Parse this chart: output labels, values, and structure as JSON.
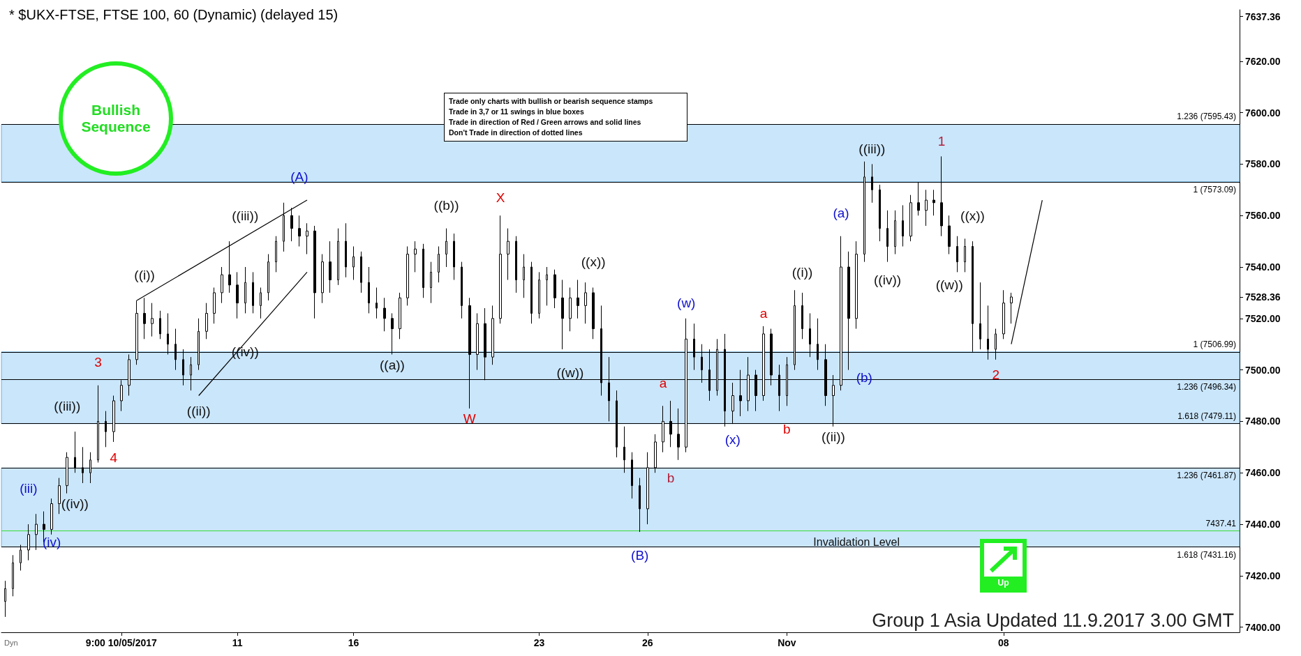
{
  "chart_data": {
    "type": "candlestick",
    "title": "* $UKX-FTSE, FTSE 100, 60 (Dynamic) (delayed 15)",
    "color": "#000000",
    "categories": [
      null,
      null,
      null,
      null,
      null,
      null,
      null,
      null,
      null,
      null,
      null,
      null,
      null,
      null,
      null,
      "9:00 10/05/2017",
      null,
      null,
      null,
      null,
      null,
      null,
      null,
      null,
      null,
      null,
      null,
      null,
      null,
      null,
      "11",
      null,
      null,
      null,
      null,
      null,
      null,
      null,
      null,
      null,
      null,
      null,
      null,
      null,
      null,
      "16",
      null,
      null,
      null,
      null,
      null,
      null,
      null,
      null,
      null,
      null,
      null,
      null,
      null,
      null,
      null,
      null,
      null,
      null,
      null,
      null,
      null,
      null,
      null,
      "23",
      null,
      null,
      null,
      null,
      null,
      null,
      null,
      null,
      null,
      null,
      null,
      null,
      null,
      "26",
      null,
      null,
      null,
      null,
      null,
      null,
      null,
      null,
      null,
      null,
      null,
      null,
      null,
      null,
      null,
      null,
      null,
      "Nov",
      null,
      null,
      null,
      null,
      null,
      null,
      null,
      null,
      null,
      null,
      null,
      null,
      null,
      null,
      null,
      null,
      null,
      null,
      null,
      null,
      null,
      null,
      null,
      null,
      null,
      null,
      null,
      "08",
      null,
      null,
      null,
      null,
      null,
      null,
      null,
      null,
      null,
      null,
      null,
      null,
      null,
      null,
      null,
      null,
      null,
      null,
      null,
      null,
      null,
      null,
      null,
      null,
      null,
      null,
      null,
      null,
      null,
      null
    ],
    "ohlc": [
      [
        7410,
        7418,
        7404,
        7415
      ],
      [
        7415,
        7428,
        7412,
        7425
      ],
      [
        7425,
        7432,
        7422,
        7430
      ],
      [
        7430,
        7440,
        7426,
        7436
      ],
      [
        7436,
        7444,
        7430,
        7440
      ],
      [
        7440,
        7445,
        7433,
        7438
      ],
      [
        7438,
        7450,
        7436,
        7448
      ],
      [
        7448,
        7458,
        7444,
        7455
      ],
      [
        7455,
        7468,
        7452,
        7466
      ],
      [
        7466,
        7476,
        7460,
        7462
      ],
      [
        7462,
        7470,
        7456,
        7460
      ],
      [
        7460,
        7468,
        7456,
        7465
      ],
      [
        7465,
        7494,
        7464,
        7480
      ],
      [
        7480,
        7484,
        7470,
        7476
      ],
      [
        7476,
        7490,
        7472,
        7488
      ],
      [
        7488,
        7496,
        7484,
        7494
      ],
      [
        7494,
        7506,
        7490,
        7504
      ],
      [
        7504,
        7527,
        7502,
        7522
      ],
      [
        7522,
        7528,
        7512,
        7518
      ],
      [
        7518,
        7526,
        7513,
        7520
      ],
      [
        7520,
        7523,
        7512,
        7514
      ],
      [
        7514,
        7522,
        7506,
        7510
      ],
      [
        7510,
        7516,
        7500,
        7504
      ],
      [
        7504,
        7508,
        7494,
        7498
      ],
      [
        7498,
        7505,
        7492,
        7502
      ],
      [
        7502,
        7520,
        7500,
        7515
      ],
      [
        7515,
        7526,
        7512,
        7522
      ],
      [
        7522,
        7532,
        7518,
        7530
      ],
      [
        7530,
        7540,
        7526,
        7537
      ],
      [
        7537,
        7550,
        7530,
        7533
      ],
      [
        7533,
        7538,
        7520,
        7526
      ],
      [
        7526,
        7540,
        7522,
        7534
      ],
      [
        7534,
        7538,
        7522,
        7525
      ],
      [
        7525,
        7532,
        7520,
        7530
      ],
      [
        7530,
        7545,
        7527,
        7542
      ],
      [
        7542,
        7552,
        7538,
        7550
      ],
      [
        7550,
        7565,
        7546,
        7560
      ],
      [
        7560,
        7563,
        7550,
        7555
      ],
      [
        7555,
        7560,
        7548,
        7552
      ],
      [
        7552,
        7557,
        7545,
        7554
      ],
      [
        7554,
        7556,
        7520,
        7530
      ],
      [
        7530,
        7545,
        7526,
        7542
      ],
      [
        7542,
        7550,
        7530,
        7535
      ],
      [
        7535,
        7555,
        7533,
        7550
      ],
      [
        7550,
        7557,
        7536,
        7540
      ],
      [
        7540,
        7548,
        7535,
        7544
      ],
      [
        7544,
        7546,
        7530,
        7534
      ],
      [
        7534,
        7540,
        7522,
        7526
      ],
      [
        7526,
        7532,
        7520,
        7524
      ],
      [
        7524,
        7528,
        7515,
        7520
      ],
      [
        7520,
        7522,
        7506,
        7516
      ],
      [
        7516,
        7530,
        7512,
        7528
      ],
      [
        7528,
        7548,
        7525,
        7545
      ],
      [
        7545,
        7550,
        7538,
        7547
      ],
      [
        7547,
        7549,
        7528,
        7532
      ],
      [
        7532,
        7542,
        7526,
        7538
      ],
      [
        7538,
        7548,
        7534,
        7545
      ],
      [
        7545,
        7555,
        7540,
        7550
      ],
      [
        7550,
        7553,
        7535,
        7540
      ],
      [
        7540,
        7542,
        7520,
        7525
      ],
      [
        7525,
        7528,
        7485,
        7506
      ],
      [
        7506,
        7522,
        7500,
        7518
      ],
      [
        7518,
        7524,
        7496,
        7505
      ],
      [
        7505,
        7525,
        7502,
        7520
      ],
      [
        7520,
        7560,
        7518,
        7545
      ],
      [
        7545,
        7555,
        7535,
        7550
      ],
      [
        7550,
        7552,
        7530,
        7535
      ],
      [
        7535,
        7545,
        7528,
        7540
      ],
      [
        7540,
        7542,
        7518,
        7522
      ],
      [
        7522,
        7538,
        7520,
        7535
      ],
      [
        7535,
        7540,
        7525,
        7537
      ],
      [
        7537,
        7539,
        7524,
        7528
      ],
      [
        7528,
        7535,
        7508,
        7520
      ],
      [
        7520,
        7532,
        7515,
        7528
      ],
      [
        7528,
        7535,
        7520,
        7525
      ],
      [
        7525,
        7534,
        7518,
        7530
      ],
      [
        7530,
        7532,
        7512,
        7516
      ],
      [
        7516,
        7525,
        7490,
        7495
      ],
      [
        7495,
        7505,
        7480,
        7488
      ],
      [
        7488,
        7492,
        7466,
        7470
      ],
      [
        7470,
        7478,
        7460,
        7465
      ],
      [
        7465,
        7468,
        7450,
        7455
      ],
      [
        7455,
        7458,
        7437,
        7446
      ],
      [
        7446,
        7468,
        7440,
        7462
      ],
      [
        7462,
        7475,
        7460,
        7472
      ],
      [
        7472,
        7486,
        7468,
        7480
      ],
      [
        7480,
        7488,
        7470,
        7475
      ],
      [
        7475,
        7485,
        7465,
        7470
      ],
      [
        7470,
        7520,
        7468,
        7512
      ],
      [
        7512,
        7518,
        7500,
        7505
      ],
      [
        7505,
        7510,
        7495,
        7500
      ],
      [
        7500,
        7508,
        7488,
        7492
      ],
      [
        7492,
        7512,
        7490,
        7508
      ],
      [
        7508,
        7514,
        7478,
        7484
      ],
      [
        7484,
        7495,
        7479,
        7490
      ],
      [
        7490,
        7500,
        7482,
        7488
      ],
      [
        7488,
        7505,
        7484,
        7498
      ],
      [
        7498,
        7500,
        7484,
        7490
      ],
      [
        7490,
        7517,
        7488,
        7514
      ],
      [
        7514,
        7516,
        7494,
        7498
      ],
      [
        7498,
        7502,
        7484,
        7490
      ],
      [
        7490,
        7505,
        7486,
        7502
      ],
      [
        7502,
        7531,
        7500,
        7525
      ],
      [
        7525,
        7530,
        7512,
        7516
      ],
      [
        7516,
        7522,
        7505,
        7510
      ],
      [
        7510,
        7520,
        7500,
        7504
      ],
      [
        7504,
        7510,
        7486,
        7490
      ],
      [
        7490,
        7498,
        7478,
        7494
      ],
      [
        7494,
        7552,
        7492,
        7540
      ],
      [
        7540,
        7546,
        7500,
        7520
      ],
      [
        7520,
        7550,
        7516,
        7545
      ],
      [
        7545,
        7581,
        7542,
        7575
      ],
      [
        7575,
        7580,
        7565,
        7570
      ],
      [
        7570,
        7572,
        7550,
        7555
      ],
      [
        7555,
        7562,
        7542,
        7548
      ],
      [
        7548,
        7562,
        7545,
        7558
      ],
      [
        7558,
        7564,
        7548,
        7552
      ],
      [
        7552,
        7568,
        7550,
        7565
      ],
      [
        7565,
        7573,
        7560,
        7562
      ],
      [
        7562,
        7570,
        7556,
        7566
      ],
      [
        7566,
        7570,
        7560,
        7565
      ],
      [
        7565,
        7583,
        7552,
        7556
      ],
      [
        7556,
        7560,
        7545,
        7548
      ],
      [
        7548,
        7552,
        7538,
        7542
      ],
      [
        7542,
        7551,
        7538,
        7548
      ],
      [
        7548,
        7550,
        7507,
        7518
      ],
      [
        7518,
        7534,
        7508,
        7512
      ],
      [
        7512,
        7525,
        7504,
        7508
      ],
      [
        7508,
        7516,
        7504,
        7514
      ],
      [
        7514,
        7531,
        7512,
        7526
      ],
      [
        7526,
        7530,
        7518,
        7528.36
      ],
      null,
      null,
      null,
      null,
      null,
      null,
      null,
      null,
      null,
      null,
      null,
      null,
      null,
      null,
      null,
      null,
      null,
      null,
      null,
      null,
      null,
      null,
      null,
      null,
      null,
      null,
      null,
      null,
      null
    ],
    "series": [
      {
        "type": "line",
        "color": "#000000",
        "values": [
          null,
          null,
          null,
          null,
          null,
          null,
          null,
          null,
          null,
          null,
          null,
          null,
          null,
          null,
          null,
          null,
          null,
          7527,
          null,
          null,
          null,
          null,
          null,
          null,
          null,
          null,
          null,
          null,
          null,
          null,
          null,
          null,
          null,
          null,
          null,
          null,
          null,
          null,
          null,
          7566,
          null,
          null,
          null,
          null,
          null,
          null,
          null,
          null,
          null,
          null,
          null,
          null,
          null,
          null,
          null,
          null,
          null,
          null,
          null,
          null,
          null,
          null,
          null,
          null,
          null,
          null,
          null,
          null,
          null,
          null,
          null,
          null,
          null,
          null,
          null,
          null,
          null,
          null,
          null,
          null,
          null,
          null,
          null,
          null,
          null,
          null,
          null,
          null,
          null,
          null,
          null,
          null,
          null,
          null,
          null,
          null,
          null,
          null,
          null,
          null,
          null,
          null,
          null,
          null,
          null,
          null,
          null,
          null,
          null,
          null,
          null,
          null,
          null,
          null,
          null,
          null,
          null,
          null,
          null,
          null,
          null,
          null,
          null,
          null,
          null,
          null,
          null,
          null,
          null,
          null,
          null,
          null,
          null,
          null,
          null,
          null,
          null,
          null,
          null,
          null,
          null,
          null,
          null,
          null,
          null,
          null,
          null,
          null,
          null,
          null,
          null,
          null,
          null,
          null,
          null,
          null,
          null,
          null,
          null,
          null
        ]
      },
      {
        "type": "line",
        "color": "#000000",
        "values": [
          null,
          null,
          null,
          null,
          null,
          null,
          null,
          null,
          null,
          null,
          null,
          null,
          null,
          null,
          null,
          null,
          null,
          null,
          null,
          null,
          null,
          null,
          null,
          null,
          null,
          7490,
          null,
          null,
          null,
          null,
          null,
          null,
          null,
          null,
          null,
          null,
          null,
          null,
          null,
          7538,
          null,
          null,
          null,
          null,
          null,
          null,
          null,
          null,
          null,
          null,
          null,
          null,
          null,
          null,
          null,
          null,
          null,
          null,
          null,
          null,
          null,
          null,
          null,
          null,
          null,
          null,
          null,
          null,
          null,
          null,
          null,
          null,
          null,
          null,
          null,
          null,
          null,
          null,
          null,
          null,
          null,
          null,
          null,
          null,
          null,
          null,
          null,
          null,
          null,
          null,
          null,
          null,
          null,
          null,
          null,
          null,
          null,
          null,
          null,
          null,
          null,
          null,
          null,
          null,
          null,
          null,
          null,
          null,
          null,
          null,
          null,
          null,
          null,
          null,
          null,
          null,
          null,
          null,
          null,
          null,
          null,
          null,
          null,
          null,
          null,
          null,
          null,
          null,
          null,
          null,
          null,
          null,
          null,
          null,
          null,
          null,
          null,
          null,
          null,
          null,
          null,
          null,
          null,
          null,
          null,
          null,
          null,
          null,
          null,
          null,
          null,
          null,
          null,
          null,
          null,
          null,
          null,
          null,
          null,
          null
        ]
      },
      {
        "type": "line",
        "color": "#000000",
        "values": [
          null,
          null,
          null,
          null,
          null,
          null,
          null,
          null,
          null,
          null,
          null,
          null,
          null,
          null,
          null,
          null,
          null,
          null,
          null,
          null,
          null,
          null,
          null,
          null,
          null,
          null,
          null,
          null,
          null,
          null,
          null,
          null,
          null,
          null,
          null,
          null,
          null,
          null,
          null,
          null,
          null,
          null,
          null,
          null,
          null,
          null,
          null,
          null,
          null,
          null,
          null,
          null,
          null,
          null,
          null,
          null,
          null,
          null,
          null,
          null,
          null,
          null,
          null,
          null,
          null,
          null,
          null,
          null,
          null,
          null,
          null,
          null,
          null,
          null,
          null,
          null,
          null,
          null,
          null,
          null,
          null,
          null,
          null,
          null,
          null,
          null,
          null,
          null,
          null,
          null,
          null,
          null,
          null,
          null,
          null,
          null,
          null,
          null,
          null,
          null,
          null,
          null,
          null,
          null,
          null,
          null,
          null,
          null,
          null,
          null,
          null,
          null,
          null,
          null,
          null,
          null,
          null,
          null,
          null,
          null,
          null,
          null,
          null,
          null,
          null,
          null,
          null,
          null,
          null,
          null,
          7510,
          null,
          null,
          null,
          7566,
          null,
          null,
          null,
          null,
          null,
          null,
          null,
          null,
          null,
          null,
          null,
          null,
          null,
          null,
          null,
          null,
          null,
          null,
          null,
          null,
          null,
          null,
          null,
          null,
          null
        ]
      }
    ],
    "ylim": [
      7398,
      7640
    ],
    "yticks": [
      {
        "value": 7400,
        "label": "7400.00"
      },
      {
        "value": 7420,
        "label": "7420.00"
      },
      {
        "value": 7440,
        "label": "7440.00"
      },
      {
        "value": 7460,
        "label": "7460.00"
      },
      {
        "value": 7480,
        "label": "7480.00"
      },
      {
        "value": 7500,
        "label": "7500.00"
      },
      {
        "value": 7520,
        "label": "7520.00"
      },
      {
        "value": 7528.36,
        "label": "7528.36"
      },
      {
        "value": 7540,
        "label": "7540.00"
      },
      {
        "value": 7560,
        "label": "7560.00"
      },
      {
        "value": 7580,
        "label": "7580.00"
      },
      {
        "value": 7600,
        "label": "7600.00"
      },
      {
        "value": 7620,
        "label": "7620.00"
      },
      {
        "value": 7637.36,
        "label": "7637.36"
      }
    ],
    "bands": [
      {
        "axis": "y",
        "from": 7573.09,
        "to": 7595.43,
        "color": "#b3dcfa"
      },
      {
        "axis": "y",
        "from": 7479.11,
        "to": 7506.99,
        "color": "#b3dcfa"
      },
      {
        "axis": "y",
        "from": 7431.16,
        "to": 7461.87,
        "color": "#b3dcfa"
      }
    ],
    "ref_lines": [
      {
        "axis": "y",
        "value": 7595.43,
        "label": "1.236 (7595.43)",
        "color": "#000000"
      },
      {
        "axis": "y",
        "value": 7573.09,
        "label": "1 (7573.09)",
        "color": "#000000"
      },
      {
        "axis": "y",
        "value": 7506.99,
        "label": "1 (7506.99)",
        "color": "#000000"
      },
      {
        "axis": "y",
        "value": 7496.34,
        "label": "1.236 (7496.34)",
        "color": "#000000"
      },
      {
        "axis": "y",
        "value": 7479.11,
        "label": "1.618 (7479.11)",
        "color": "#000000"
      },
      {
        "axis": "y",
        "value": 7461.87,
        "label": "1.236 (7461.87)",
        "color": "#000000"
      },
      {
        "axis": "y",
        "value": 7437.41,
        "label": "7437.41",
        "color": "#33dd33"
      },
      {
        "axis": "y",
        "value": 7431.16,
        "label": "1.618 (7431.16)",
        "color": "#000000"
      }
    ],
    "annotations": [
      "Bullish Sequence",
      "Trade only charts with bullish or bearish sequence stamps",
      "Trade in 3,7 or 11 swings in blue boxes",
      "Trade in direction of Red / Green arrows and solid lines",
      "Don't Trade in direction of dotted lines",
      "Up",
      "Group 1 Asia Updated 11.9.2017 3.00 GMT",
      "Dyn",
      "Invalidation Level",
      "(iii)",
      "(iv)",
      "((iii))",
      "((iv))",
      "3",
      "4",
      "((i))",
      "((ii))",
      "((iii))",
      "((iv))",
      "(A)",
      "((a))",
      "((b))",
      "W",
      "X",
      "((w))",
      "((x))",
      "(B)",
      "a",
      "b",
      "(w)",
      "(x)",
      "a",
      "b",
      "((i))",
      "((ii))",
      "(a)",
      "(b)",
      "((iii))",
      "((iv))",
      "1",
      "((w))",
      "((x))",
      "2"
    ]
  }
}
